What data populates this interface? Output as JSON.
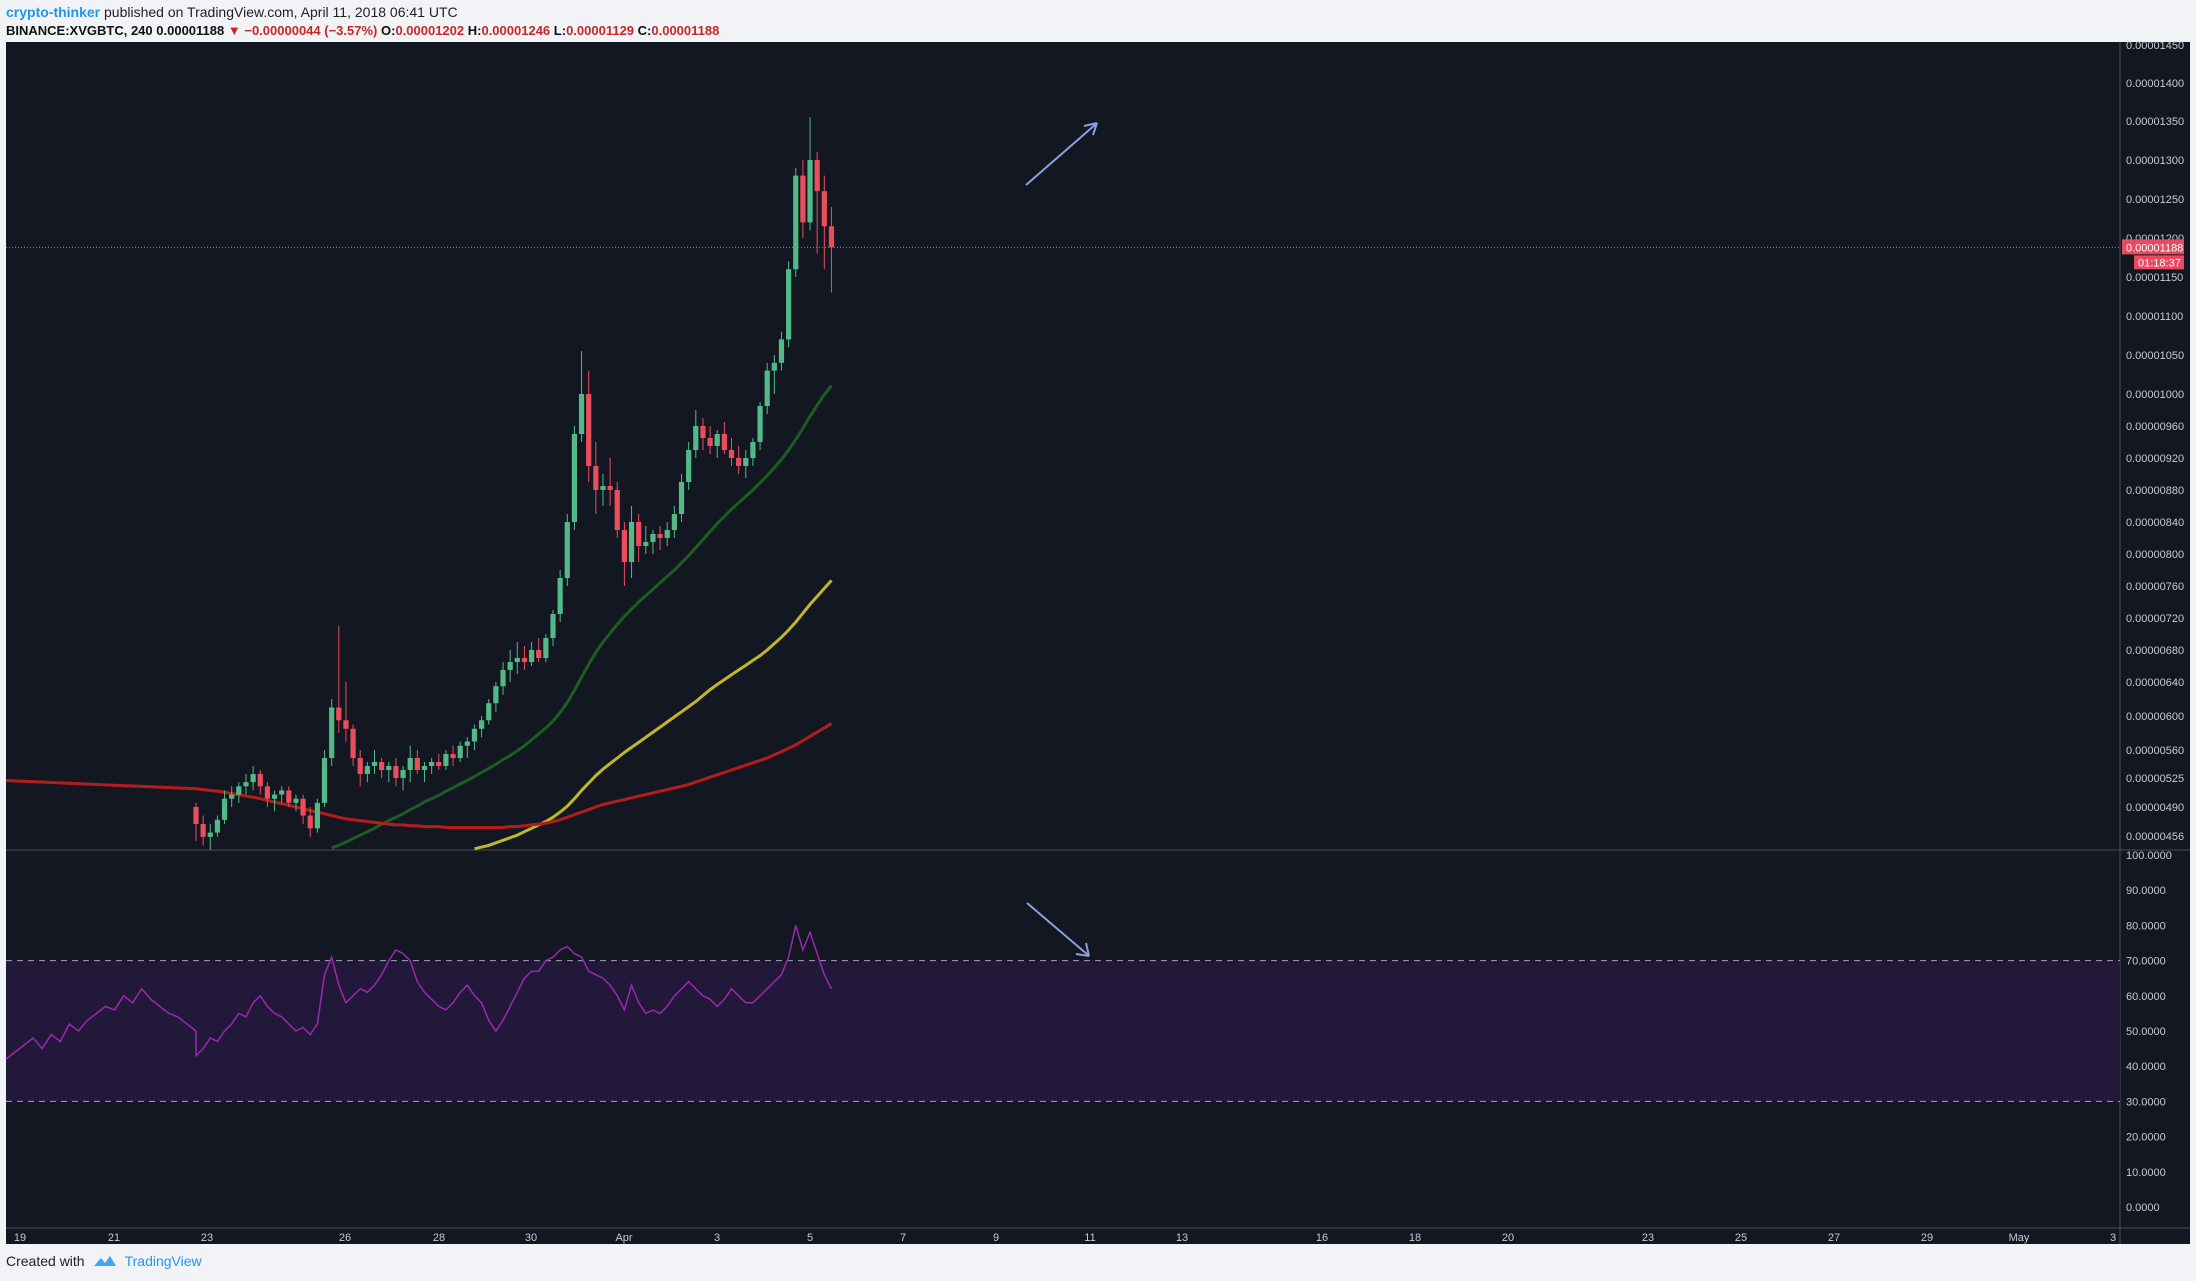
{
  "header": {
    "author": "crypto-thinker",
    "published_text": "published on TradingView.com, April 11, 2018 06:41 UTC",
    "symbol": "BINANCE:XVGBTC, 240",
    "last": "0.00001188",
    "change": "−0.00000044 (−3.57%)",
    "o_label": "O:",
    "o_value": "0.00001202",
    "h_label": "H:",
    "h_value": "0.00001246",
    "l_label": "L:",
    "l_value": "0.00001129",
    "c_label": "C:",
    "c_value": "0.00001188"
  },
  "footer": {
    "created_with": "Created with",
    "brand": "TradingView"
  },
  "colors": {
    "background": "#131722",
    "up": "#53b987",
    "down": "#eb4d5c",
    "ema_green": "#1b5e20",
    "ema_yellow": "#c0b62a",
    "ema_red": "#b71c1c",
    "rsi": "#9c27b0",
    "rsi_band": "#22183a",
    "arrow": "#8aa0e0",
    "last_price": "#f15a6c"
  },
  "price_badge": {
    "value": "0.00001188",
    "countdown": "01:18:37"
  },
  "chart_data": [
    {
      "type": "candlestick",
      "title": "",
      "ylim": [
        4.4e-06,
        1.45e-05
      ],
      "y_tick_labels": [
        "0.00001450",
        "0.00001400",
        "0.00001350",
        "0.00001300",
        "0.00001250",
        "0.00001200",
        "0.00001150",
        "0.00001100",
        "0.00001050",
        "0.00001000",
        "0.00000960",
        "0.00000920",
        "0.00000880",
        "0.00000840",
        "0.00000800",
        "0.00000760",
        "0.00000720",
        "0.00000680",
        "0.00000640",
        "0.00000600",
        "0.00000560",
        "0.00000525",
        "0.00000490",
        "0.00000456"
      ],
      "x_tick_labels": [
        "19",
        "21",
        "23",
        "26",
        "28",
        "30",
        "Apr",
        "3",
        "5",
        "7",
        "9",
        "11",
        "13",
        "16",
        "18",
        "20",
        "23",
        "25",
        "27",
        "29",
        "May",
        "3"
      ],
      "candles_ohlc": [
        [
          490,
          495,
          450,
          470
        ],
        [
          470,
          480,
          445,
          455
        ],
        [
          455,
          470,
          440,
          460
        ],
        [
          460,
          480,
          455,
          475
        ],
        [
          475,
          510,
          470,
          500
        ],
        [
          500,
          515,
          490,
          505
        ],
        [
          505,
          520,
          495,
          515
        ],
        [
          515,
          530,
          505,
          520
        ],
        [
          520,
          540,
          510,
          530
        ],
        [
          530,
          535,
          505,
          515
        ],
        [
          515,
          520,
          490,
          500
        ],
        [
          500,
          510,
          485,
          505
        ],
        [
          505,
          515,
          495,
          510
        ],
        [
          510,
          515,
          490,
          495
        ],
        [
          495,
          505,
          485,
          500
        ],
        [
          500,
          505,
          470,
          480
        ],
        [
          480,
          490,
          455,
          465
        ],
        [
          465,
          500,
          460,
          495
        ],
        [
          495,
          560,
          490,
          550
        ],
        [
          550,
          620,
          540,
          610
        ],
        [
          610,
          710,
          580,
          595
        ],
        [
          595,
          640,
          570,
          585
        ],
        [
          585,
          590,
          540,
          550
        ],
        [
          550,
          560,
          515,
          530
        ],
        [
          530,
          545,
          520,
          540
        ],
        [
          540,
          560,
          530,
          545
        ],
        [
          545,
          550,
          525,
          535
        ],
        [
          535,
          545,
          520,
          540
        ],
        [
          540,
          550,
          515,
          525
        ],
        [
          525,
          540,
          510,
          535
        ],
        [
          535,
          565,
          520,
          550
        ],
        [
          550,
          560,
          530,
          535
        ],
        [
          535,
          545,
          520,
          540
        ],
        [
          540,
          550,
          530,
          545
        ],
        [
          545,
          555,
          535,
          540
        ],
        [
          540,
          560,
          535,
          555
        ],
        [
          555,
          565,
          540,
          550
        ],
        [
          550,
          570,
          545,
          565
        ],
        [
          565,
          575,
          550,
          570
        ],
        [
          570,
          590,
          560,
          585
        ],
        [
          585,
          600,
          575,
          595
        ],
        [
          595,
          620,
          590,
          615
        ],
        [
          615,
          640,
          605,
          635
        ],
        [
          635,
          665,
          625,
          655
        ],
        [
          655,
          680,
          640,
          665
        ],
        [
          665,
          690,
          650,
          670
        ],
        [
          670,
          685,
          655,
          665
        ],
        [
          665,
          690,
          660,
          680
        ],
        [
          680,
          695,
          665,
          670
        ],
        [
          670,
          700,
          665,
          695
        ],
        [
          695,
          730,
          685,
          725
        ],
        [
          725,
          780,
          715,
          770
        ],
        [
          770,
          850,
          760,
          840
        ],
        [
          840,
          960,
          830,
          950
        ],
        [
          950,
          1055,
          940,
          1000
        ],
        [
          1000,
          1030,
          890,
          910
        ],
        [
          910,
          940,
          850,
          880
        ],
        [
          880,
          900,
          860,
          885
        ],
        [
          885,
          920,
          860,
          880
        ],
        [
          880,
          890,
          820,
          830
        ],
        [
          830,
          840,
          760,
          790
        ],
        [
          790,
          860,
          770,
          840
        ],
        [
          840,
          850,
          790,
          810
        ],
        [
          810,
          835,
          800,
          815
        ],
        [
          815,
          830,
          800,
          825
        ],
        [
          825,
          835,
          805,
          820
        ],
        [
          820,
          840,
          810,
          830
        ],
        [
          830,
          860,
          820,
          850
        ],
        [
          850,
          900,
          840,
          890
        ],
        [
          890,
          940,
          880,
          930
        ],
        [
          930,
          980,
          920,
          960
        ],
        [
          960,
          970,
          930,
          945
        ],
        [
          945,
          960,
          925,
          935
        ],
        [
          935,
          955,
          920,
          950
        ],
        [
          950,
          965,
          925,
          930
        ],
        [
          930,
          945,
          910,
          920
        ],
        [
          920,
          935,
          900,
          910
        ],
        [
          910,
          930,
          895,
          920
        ],
        [
          920,
          945,
          910,
          940
        ],
        [
          940,
          990,
          930,
          985
        ],
        [
          985,
          1040,
          975,
          1030
        ],
        [
          1030,
          1050,
          1000,
          1040
        ],
        [
          1040,
          1080,
          1030,
          1070
        ],
        [
          1070,
          1170,
          1060,
          1160
        ],
        [
          1160,
          1290,
          1150,
          1280
        ],
        [
          1280,
          1300,
          1200,
          1220
        ],
        [
          1220,
          1355,
          1210,
          1300
        ],
        [
          1300,
          1310,
          1180,
          1260
        ],
        [
          1260,
          1280,
          1160,
          1215
        ],
        [
          1215,
          1240,
          1130,
          1188
        ]
      ],
      "series": [
        {
          "name": "",
          "values": [
            null,
            null,
            null,
            null,
            null,
            null,
            null,
            null,
            null,
            null,
            null,
            null,
            null,
            null,
            null,
            null,
            null,
            null,
            null,
            442,
            445,
            449,
            453,
            457,
            461,
            465,
            470,
            474,
            478,
            482,
            487,
            491,
            496,
            500,
            504,
            509,
            513,
            518,
            522,
            527,
            532,
            537,
            542,
            548,
            553,
            559,
            565,
            572,
            579,
            586,
            594,
            604,
            616,
            630,
            646,
            662,
            677,
            690,
            701,
            712,
            722,
            731,
            740,
            748,
            756,
            764,
            772,
            780,
            789,
            798,
            808,
            818,
            828,
            838,
            847,
            856,
            864,
            872,
            880,
            889,
            898,
            908,
            918,
            930,
            943,
            957,
            972,
            986,
            999,
            1011
          ]
        },
        {
          "name": "",
          "values": [
            null,
            null,
            null,
            null,
            null,
            null,
            null,
            null,
            null,
            null,
            null,
            null,
            null,
            null,
            null,
            null,
            null,
            null,
            null,
            null,
            null,
            null,
            null,
            null,
            null,
            null,
            null,
            null,
            null,
            null,
            null,
            null,
            null,
            null,
            null,
            null,
            null,
            null,
            null,
            441,
            443,
            445,
            448,
            451,
            454,
            457,
            461,
            465,
            469,
            473,
            478,
            484,
            491,
            500,
            510,
            519,
            528,
            536,
            543,
            550,
            557,
            563,
            569,
            575,
            581,
            587,
            593,
            599,
            605,
            611,
            617,
            624,
            631,
            637,
            643,
            649,
            655,
            661,
            667,
            673,
            680,
            688,
            696,
            705,
            715,
            726,
            737,
            747,
            757,
            767
          ]
        },
        {
          "name": "",
          "values": [
            512,
            511,
            510,
            509,
            508,
            506,
            505,
            503,
            502,
            500,
            498,
            496,
            494,
            492,
            490,
            488,
            486,
            484,
            482,
            480,
            478,
            476,
            475,
            474,
            473,
            472,
            471,
            470,
            469,
            469,
            468,
            468,
            467,
            467,
            467,
            466,
            466,
            466,
            466,
            466,
            466,
            466,
            466,
            466,
            467,
            467,
            468,
            469,
            470,
            471,
            473,
            475,
            478,
            481,
            484,
            487,
            490,
            493,
            495,
            497,
            499,
            501,
            503,
            505,
            507,
            509,
            511,
            513,
            515,
            517,
            520,
            523,
            526,
            529,
            532,
            535,
            538,
            541,
            544,
            547,
            550,
            554,
            558,
            562,
            566,
            571,
            576,
            581,
            586,
            591
          ]
        }
      ]
    },
    {
      "type": "line",
      "title": "",
      "ylim": [
        0,
        100
      ],
      "y_tick_labels": [
        "100.0000",
        "90.0000",
        "80.0000",
        "70.0000",
        "60.0000",
        "50.0000",
        "40.0000",
        "30.0000",
        "20.0000",
        "10.0000",
        "0.0000"
      ],
      "bands": [
        30,
        70
      ],
      "series": [
        {
          "name": "",
          "values": [
            43,
            45,
            48,
            47,
            50,
            52,
            55,
            54,
            58,
            60,
            57,
            55,
            54,
            52,
            50,
            51,
            49,
            52,
            66,
            71,
            63,
            58,
            60,
            62,
            61,
            63,
            66,
            70,
            73,
            72,
            70,
            64,
            61,
            59,
            57,
            56,
            58,
            61,
            63,
            60,
            58,
            53,
            50,
            53,
            57,
            61,
            65,
            67,
            67,
            70,
            71,
            73,
            74,
            72,
            71,
            67,
            66,
            65,
            63,
            60,
            56,
            63,
            58,
            55,
            56,
            55,
            57,
            60,
            62,
            64,
            62,
            60,
            59,
            57,
            59,
            62,
            60,
            58,
            58,
            60,
            62,
            64,
            66,
            71,
            80,
            73,
            78,
            72,
            66,
            62
          ]
        }
      ]
    }
  ]
}
